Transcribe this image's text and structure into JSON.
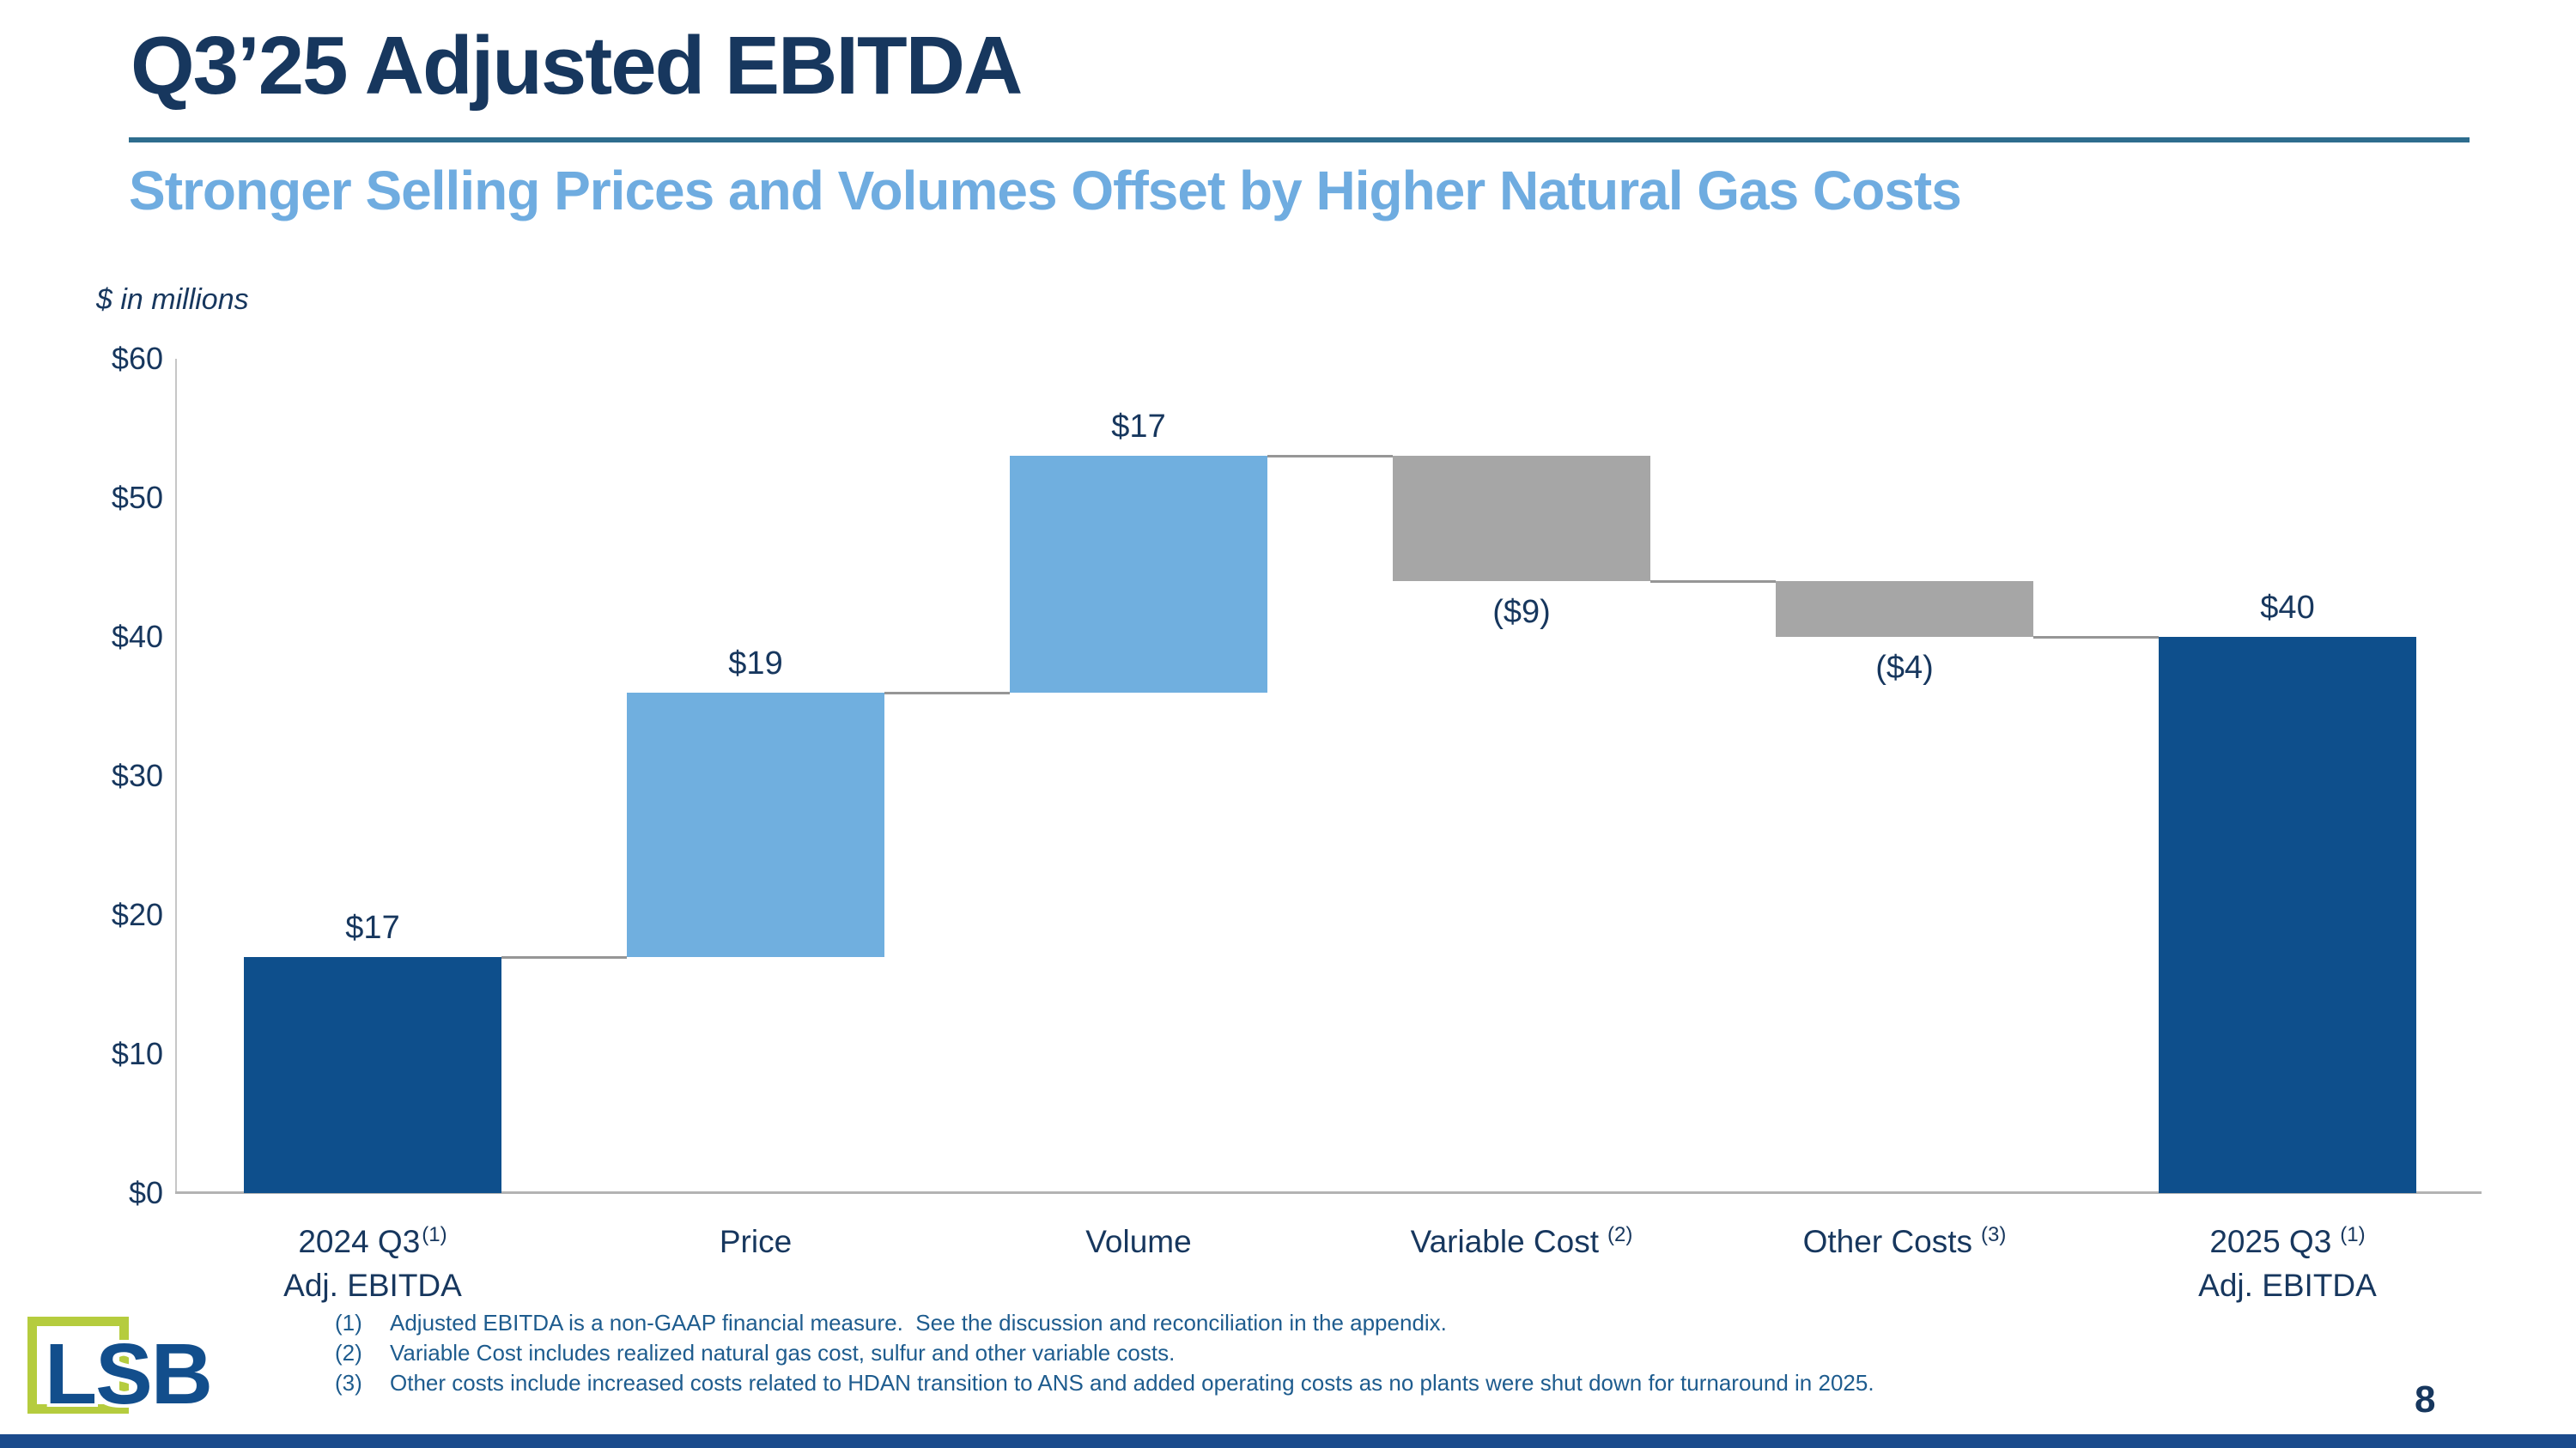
{
  "slide": {
    "title": "Q3’25 Adjusted EBITDA",
    "subtitle": "Stronger Selling Prices and Volumes Offset by Higher Natural Gas Costs",
    "units_note": "$ in millions",
    "page_number": "8"
  },
  "logo": {
    "text": "LSB"
  },
  "chart_data": {
    "type": "bar",
    "subtype": "waterfall",
    "title": "Q3'25 Adjusted EBITDA bridge, $ in millions",
    "ylim": [
      0,
      60
    ],
    "yticks": [
      "$0",
      "$10",
      "$20",
      "$30",
      "$40",
      "$50",
      "$60"
    ],
    "gridlines": false,
    "legend": false,
    "columns": [
      {
        "category": "2024 Q3",
        "category_sup": "(1)",
        "sup_attached": true,
        "category_line2": "Adj. EBITDA",
        "kind": "total",
        "value": 17,
        "label": "$17",
        "label_pos": "above"
      },
      {
        "category": "Price",
        "kind": "increase",
        "value": 19,
        "label": "$19",
        "label_pos": "above"
      },
      {
        "category": "Volume",
        "kind": "increase",
        "value": 17,
        "label": "$17",
        "label_pos": "above"
      },
      {
        "category": "Variable Cost",
        "category_sup": "(2)",
        "sup_attached": false,
        "kind": "decrease",
        "value": -9,
        "label": "($9)",
        "label_pos": "below"
      },
      {
        "category": "Other Costs",
        "category_sup": "(3)",
        "sup_attached": false,
        "kind": "decrease",
        "value": -4,
        "label": "($4)",
        "label_pos": "below"
      },
      {
        "category": "2025 Q3",
        "category_sup": "(1)",
        "sup_attached": false,
        "category_line2": "Adj. EBITDA",
        "kind": "total",
        "value": 40,
        "label": "$40",
        "label_pos": "above"
      }
    ],
    "cumulative_after_each_column": [
      17,
      36,
      53,
      44,
      40,
      40
    ],
    "colors": {
      "total": "#0E4F8C",
      "increase": "#70AFDF",
      "decrease": "#A6A6A6",
      "connector": "#969696",
      "data_label": "#17375E"
    }
  },
  "footnotes": [
    {
      "num": "(1)",
      "text": "Adjusted EBITDA is a non-GAAP financial measure.  See the discussion and reconciliation in the appendix."
    },
    {
      "num": "(2)",
      "text": "Variable Cost includes realized natural gas cost, sulfur and other variable costs."
    },
    {
      "num": "(3)",
      "text": "Other costs include increased costs related to HDAN transition to ANS and added operating costs as no plants were shut down for turnaround in 2025."
    }
  ],
  "theme": {
    "navy_text": "#17375E",
    "subtitle_blue": "#6FACE0",
    "rule_teal": "#2E6D8E",
    "footer_blue": "#1B4B8C",
    "logo_green": "#B5CC3E",
    "footnote_blue": "#1E5C8E"
  }
}
